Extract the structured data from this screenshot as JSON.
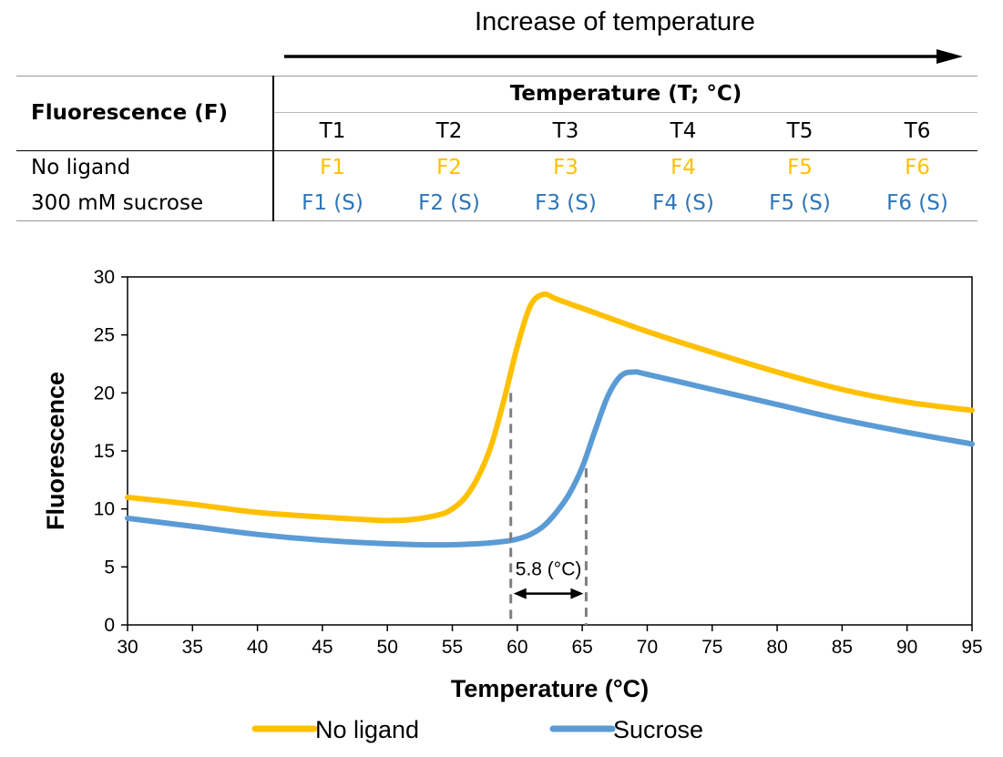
{
  "header": {
    "title": "Increase of temperature"
  },
  "table": {
    "row_header": "Fluorescence (F)",
    "col_group_header": "Temperature (T; °C)",
    "columns": [
      "T1",
      "T2",
      "T3",
      "T4",
      "T5",
      "T6"
    ],
    "rows": [
      {
        "label": "No ligand",
        "color": "#FFC000",
        "cells": [
          "F1",
          "F2",
          "F3",
          "F4",
          "F5",
          "F6"
        ]
      },
      {
        "label": "300 mM sucrose",
        "color": "#2E75B6",
        "cells": [
          "F1 (S)",
          "F2 (S)",
          "F3 (S)",
          "F4 (S)",
          "F5 (S)",
          "F6 (S)"
        ]
      }
    ]
  },
  "chart_data": {
    "type": "line",
    "title": "",
    "xlabel": "Temperature (°C)",
    "ylabel": "Fluorescence",
    "xlim": [
      30,
      95
    ],
    "ylim": [
      0,
      30
    ],
    "xticks": [
      30,
      35,
      40,
      45,
      50,
      55,
      60,
      65,
      70,
      75,
      80,
      85,
      90,
      95
    ],
    "yticks": [
      0,
      5,
      10,
      15,
      20,
      25,
      30
    ],
    "grid": false,
    "legend_position": "bottom",
    "series": [
      {
        "name": "No ligand",
        "color": "#FFC000",
        "x": [
          30,
          35,
          40,
          45,
          48,
          50,
          52,
          54,
          55,
          56,
          57,
          58,
          59,
          60,
          61,
          62,
          63,
          65,
          70,
          75,
          80,
          85,
          90,
          95
        ],
        "y": [
          11.0,
          10.4,
          9.7,
          9.3,
          9.1,
          9.0,
          9.1,
          9.5,
          10.0,
          11.0,
          12.8,
          15.5,
          19.5,
          24.0,
          27.5,
          28.5,
          28.1,
          27.3,
          25.3,
          23.5,
          21.8,
          20.3,
          19.2,
          18.5
        ]
      },
      {
        "name": "Sucrose",
        "color": "#5B9BD5",
        "x": [
          30,
          35,
          40,
          45,
          50,
          54,
          57,
          59,
          60,
          61,
          62,
          63,
          64,
          65,
          66,
          67,
          68,
          69,
          70,
          75,
          80,
          85,
          90,
          95
        ],
        "y": [
          9.2,
          8.5,
          7.8,
          7.3,
          7.0,
          6.9,
          7.0,
          7.2,
          7.4,
          7.8,
          8.5,
          9.7,
          11.3,
          13.6,
          16.8,
          19.8,
          21.5,
          21.8,
          21.6,
          20.3,
          19.0,
          17.7,
          16.6,
          15.6
        ]
      }
    ],
    "annotation": {
      "label": "5.8 (°C)",
      "x_start": 59.5,
      "x_end": 65.3,
      "y_start_top": 20,
      "y_end_top": 13.5,
      "y_arrow": 2.7
    }
  }
}
